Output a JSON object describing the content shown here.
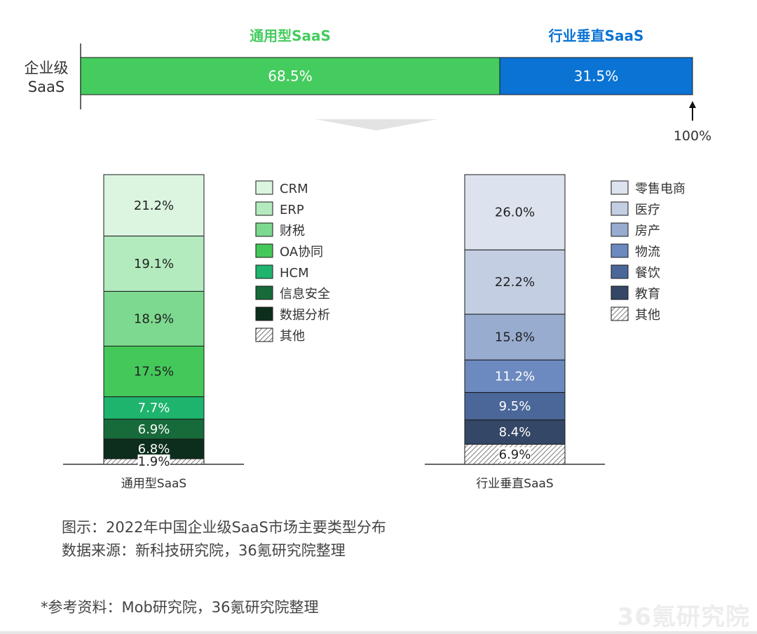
{
  "chart_data": [
    {
      "type": "bar",
      "orientation": "horizontal-stacked",
      "category_label_line1": "企业级",
      "category_label_line2": "SaaS",
      "segments": [
        {
          "name": "通用型SaaS",
          "value": 68.5,
          "label": "68.5%",
          "color": "#44cc5e"
        },
        {
          "name": "行业垂直SaaS",
          "value": 31.5,
          "label": "31.5%",
          "color": "#0a73d4"
        }
      ],
      "total_label": "100%"
    },
    {
      "type": "bar",
      "orientation": "vertical-stacked",
      "xlabel": "通用型SaaS",
      "legend_position": "right",
      "segments": [
        {
          "name": "CRM",
          "value": 21.2,
          "label": "21.2%",
          "color": "#dcf5e0",
          "text_color": "#222222"
        },
        {
          "name": "ERP",
          "value": 19.1,
          "label": "19.1%",
          "color": "#b3ebbf",
          "text_color": "#222222"
        },
        {
          "name": "财税",
          "value": 18.9,
          "label": "18.9%",
          "color": "#7dd98f",
          "text_color": "#222222"
        },
        {
          "name": "OA协同",
          "value": 17.5,
          "label": "17.5%",
          "color": "#44c85a",
          "text_color": "#222222"
        },
        {
          "name": "HCM",
          "value": 7.7,
          "label": "7.7%",
          "color": "#1fb46e",
          "text_color": "#ffffff"
        },
        {
          "name": "信息安全",
          "value": 6.9,
          "label": "6.9%",
          "color": "#176b3a",
          "text_color": "#ffffff"
        },
        {
          "name": "数据分析",
          "value": 6.8,
          "label": "6.8%",
          "color": "#0d2e1c",
          "text_color": "#ffffff"
        },
        {
          "name": "其他",
          "value": 1.9,
          "label": "1.9%",
          "color": "hatch",
          "text_color": "#222222"
        }
      ]
    },
    {
      "type": "bar",
      "orientation": "vertical-stacked",
      "xlabel": "行业垂直SaaS",
      "legend_position": "right",
      "segments": [
        {
          "name": "零售电商",
          "value": 26.0,
          "label": "26.0%",
          "color": "#dde3ee",
          "text_color": "#222222"
        },
        {
          "name": "医疗",
          "value": 22.2,
          "label": "22.2%",
          "color": "#c3cee2",
          "text_color": "#222222"
        },
        {
          "name": "房产",
          "value": 15.8,
          "label": "15.8%",
          "color": "#98acd0",
          "text_color": "#222222"
        },
        {
          "name": "物流",
          "value": 11.2,
          "label": "11.2%",
          "color": "#6c8abf",
          "text_color": "#ffffff"
        },
        {
          "name": "餐饮",
          "value": 9.5,
          "label": "9.5%",
          "color": "#4b6799",
          "text_color": "#ffffff"
        },
        {
          "name": "教育",
          "value": 8.4,
          "label": "8.4%",
          "color": "#344766",
          "text_color": "#ffffff"
        },
        {
          "name": "其他",
          "value": 6.9,
          "label": "6.9%",
          "color": "hatch",
          "text_color": "#222222"
        }
      ]
    }
  ],
  "caption": {
    "line1": "图示：2022年中国企业级SaaS市场主要类型分布",
    "line2": "数据来源：新科技研究院，36氪研究院整理"
  },
  "note": "*参考资料：Mob研究院，36氪研究院整理",
  "watermark": "36氪研究院"
}
